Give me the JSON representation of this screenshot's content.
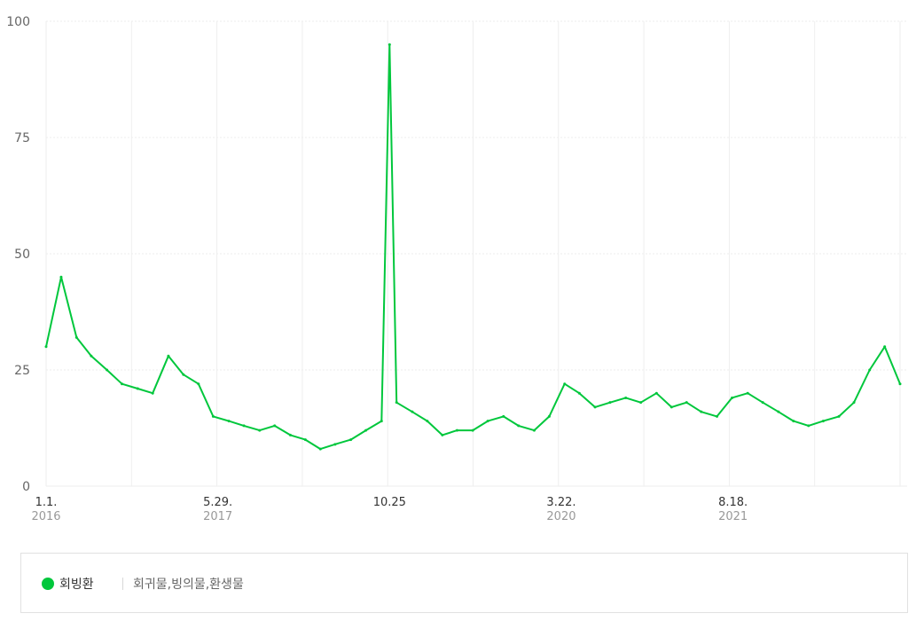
{
  "colors": {
    "series": "#00c73c",
    "grid": "#eeeeee"
  },
  "chart_data": {
    "type": "line",
    "ylim": [
      0,
      100
    ],
    "grid": true,
    "legend_placement": "bottom",
    "yticks": [
      {
        "value": 0,
        "label": "0"
      },
      {
        "value": 25,
        "label": "25"
      },
      {
        "value": 50,
        "label": "50"
      },
      {
        "value": 75,
        "label": "75"
      },
      {
        "value": 100,
        "label": "100"
      }
    ],
    "xticks": [
      {
        "date": "2016-01-01",
        "label": "1.1.",
        "year": "2016"
      },
      {
        "date": "2017-05-29",
        "label": "5.29.",
        "year": "2017"
      },
      {
        "date": "2018-10-25",
        "label": "10.25",
        "year": ""
      },
      {
        "date": "2020-03-22",
        "label": "3.22.",
        "year": "2020"
      },
      {
        "date": "2021-08-18",
        "label": "8.18.",
        "year": "2021"
      }
    ],
    "x_range": [
      "2016-01-01",
      "2022-12-31"
    ],
    "series": [
      {
        "name": "회빙환",
        "keywords": "회귀물,빙의물,환생물",
        "x": [
          "2016-01-01",
          "2016-02-15",
          "2016-04-01",
          "2016-05-15",
          "2016-07-01",
          "2016-08-15",
          "2016-10-01",
          "2016-11-15",
          "2017-01-01",
          "2017-02-15",
          "2017-04-01",
          "2017-05-15",
          "2017-07-01",
          "2017-08-15",
          "2017-10-01",
          "2017-11-15",
          "2018-01-01",
          "2018-02-15",
          "2018-04-01",
          "2018-05-15",
          "2018-07-01",
          "2018-08-15",
          "2018-10-01",
          "2018-10-25",
          "2018-11-15",
          "2019-01-01",
          "2019-02-15",
          "2019-04-01",
          "2019-05-15",
          "2019-07-01",
          "2019-08-15",
          "2019-10-01",
          "2019-11-15",
          "2020-01-01",
          "2020-02-15",
          "2020-04-01",
          "2020-05-15",
          "2020-07-01",
          "2020-08-15",
          "2020-10-01",
          "2020-11-15",
          "2021-01-01",
          "2021-02-15",
          "2021-04-01",
          "2021-05-15",
          "2021-07-01",
          "2021-08-15",
          "2021-10-01",
          "2021-11-15",
          "2022-01-01",
          "2022-02-15",
          "2022-04-01",
          "2022-05-15",
          "2022-07-01",
          "2022-08-15",
          "2022-10-01",
          "2022-11-15",
          "2022-12-31"
        ],
        "values": [
          30,
          45,
          32,
          28,
          25,
          22,
          21,
          20,
          28,
          24,
          22,
          15,
          14,
          13,
          12,
          13,
          11,
          10,
          8,
          9,
          10,
          12,
          14,
          95,
          18,
          16,
          14,
          11,
          12,
          12,
          14,
          15,
          13,
          12,
          15,
          22,
          20,
          17,
          18,
          19,
          18,
          20,
          17,
          18,
          16,
          15,
          19,
          20,
          18,
          16,
          14,
          13,
          14,
          15,
          18,
          25,
          30,
          22
        ]
      }
    ]
  }
}
